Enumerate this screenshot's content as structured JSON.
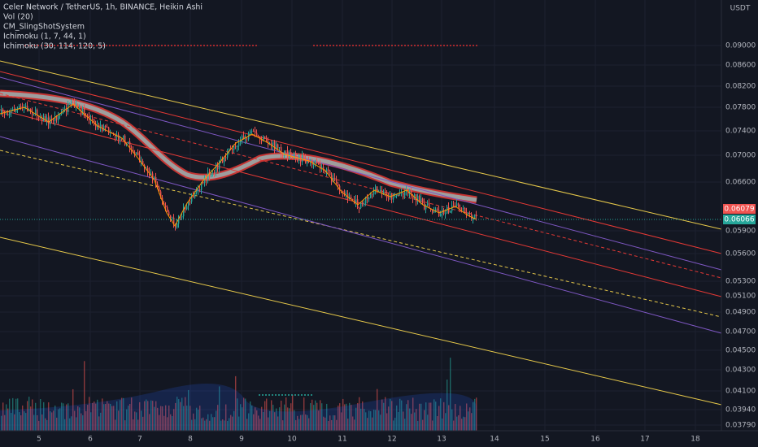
{
  "legend": [
    "Celer Network / TetherUS, 1h, BINANCE, Heikin Ashi",
    "Vol (20)",
    "CM_SlingShotSystem",
    "Ichimoku (1, 7, 44, 1)",
    "Ichimoku (30, 114, 120, 5)"
  ],
  "price_axis": {
    "currency": "USDT",
    "labels": [
      "0.09000",
      "0.08600",
      "0.08200",
      "0.07800",
      "0.07400",
      "0.07000",
      "0.06600",
      "0.05900",
      "0.05600",
      "0.05300",
      "0.05100",
      "0.04900",
      "0.04700",
      "0.04500",
      "0.04300",
      "0.04100",
      "0.03940",
      "0.03790"
    ],
    "tags": [
      "0.06079",
      "0.06066"
    ]
  },
  "time_axis": [
    "5",
    "6",
    "7",
    "8",
    "9",
    "10",
    "11",
    "12",
    "13",
    "14",
    "15",
    "16",
    "17",
    "18"
  ]
}
